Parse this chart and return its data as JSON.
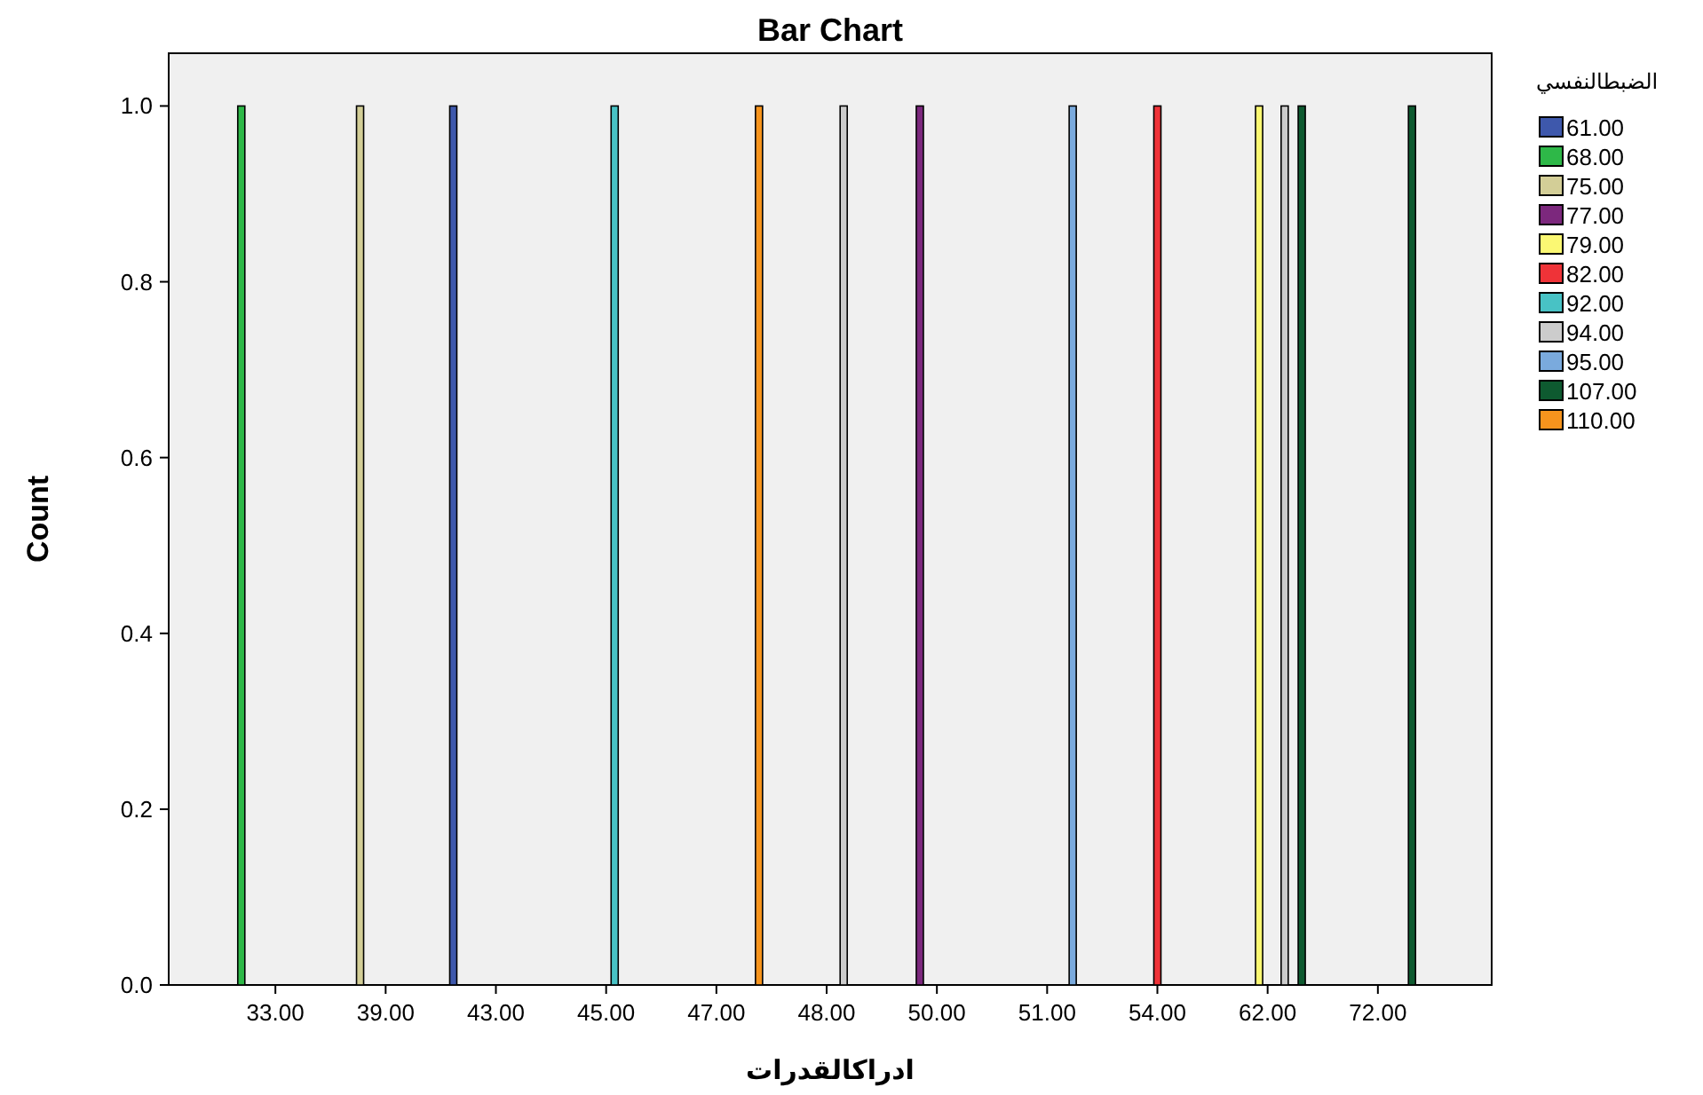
{
  "chart_data": {
    "type": "bar",
    "title": "Bar Chart",
    "xlabel": "ادراكالقدرات",
    "ylabel": "Count",
    "legend_title": "الضبطالنفسي",
    "categories": [
      "33.00",
      "39.00",
      "43.00",
      "45.00",
      "47.00",
      "48.00",
      "50.00",
      "51.00",
      "54.00",
      "62.00",
      "72.00"
    ],
    "series": [
      {
        "name": "61.00",
        "color": "#3e58ac",
        "values": [
          0,
          0,
          1,
          0,
          0,
          0,
          0,
          0,
          0,
          0,
          0
        ]
      },
      {
        "name": "68.00",
        "color": "#2eb848",
        "values": [
          1,
          0,
          0,
          0,
          0,
          0,
          0,
          0,
          0,
          0,
          0
        ]
      },
      {
        "name": "75.00",
        "color": "#d3ce97",
        "values": [
          0,
          1,
          0,
          0,
          0,
          0,
          0,
          0,
          0,
          0,
          0
        ]
      },
      {
        "name": "77.00",
        "color": "#7c287d",
        "values": [
          0,
          0,
          0,
          0,
          0,
          0,
          1,
          0,
          0,
          0,
          0
        ]
      },
      {
        "name": "79.00",
        "color": "#fbf873",
        "values": [
          0,
          0,
          0,
          0,
          0,
          0,
          0,
          0,
          0,
          1,
          0
        ]
      },
      {
        "name": "82.00",
        "color": "#ef3338",
        "values": [
          0,
          0,
          0,
          0,
          0,
          0,
          0,
          0,
          1,
          0,
          0
        ]
      },
      {
        "name": "92.00",
        "color": "#48c2c5",
        "values": [
          0,
          0,
          0,
          1,
          0,
          0,
          0,
          0,
          0,
          0,
          0
        ]
      },
      {
        "name": "94.00",
        "color": "#cccccc",
        "values": [
          0,
          0,
          0,
          0,
          0,
          1,
          0,
          0,
          0,
          1,
          0
        ]
      },
      {
        "name": "95.00",
        "color": "#7aaadd",
        "values": [
          0,
          0,
          0,
          0,
          0,
          0,
          0,
          1,
          0,
          0,
          0
        ]
      },
      {
        "name": "107.00",
        "color": "#0e5a30",
        "values": [
          0,
          0,
          0,
          0,
          0,
          0,
          0,
          0,
          0,
          1,
          1
        ]
      },
      {
        "name": "110.00",
        "color": "#f7941d",
        "values": [
          0,
          0,
          0,
          0,
          1,
          0,
          0,
          0,
          0,
          0,
          0
        ]
      }
    ],
    "ylim": [
      0,
      1.06
    ],
    "yticks": [
      {
        "value": 0,
        "label": "0.0"
      },
      0.2,
      0.4,
      0.6,
      0.8,
      {
        "value": 1,
        "label": "1.0"
      }
    ],
    "grid": false,
    "legend": "top right"
  }
}
